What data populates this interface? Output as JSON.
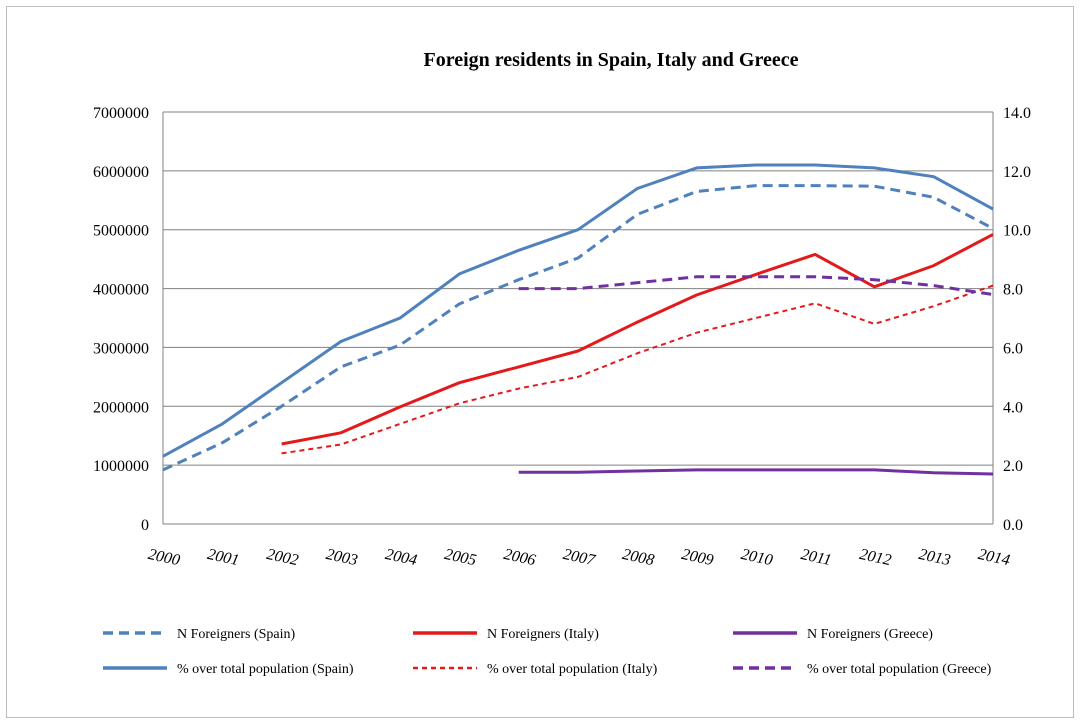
{
  "chart_data": {
    "type": "line",
    "title": "Foreign residents in Spain, Italy and Greece",
    "x": [
      "2000",
      "2001",
      "2002",
      "2003",
      "2004",
      "2005",
      "2006",
      "2007",
      "2008",
      "2009",
      "2010",
      "2011",
      "2012",
      "2013",
      "2014"
    ],
    "y_left": {
      "ylim": [
        0,
        7000000
      ],
      "ticks": [
        "0",
        "1000000",
        "2000000",
        "3000000",
        "4000000",
        "5000000",
        "6000000",
        "7000000"
      ]
    },
    "y_right": {
      "ylim": [
        0,
        14
      ],
      "ticks": [
        "0.0",
        "2.0",
        "4.0",
        "6.0",
        "8.0",
        "10.0",
        "12.0",
        "14.0"
      ]
    },
    "grid": true,
    "legend_position": "bottom",
    "series": [
      {
        "name": "N Foreigners (Spain)",
        "axis": "left",
        "color": "#4f81bd",
        "style": "dashed",
        "values": [
          920000,
          1380000,
          2000000,
          2670000,
          3040000,
          3740000,
          4150000,
          4520000,
          5260000,
          5650000,
          5750000,
          5750000,
          5740000,
          5550000,
          5020000
        ]
      },
      {
        "name": "N Foreigners (Italy)",
        "axis": "left",
        "color": "#e31a1c",
        "style": "solid",
        "values": [
          null,
          null,
          1360000,
          1550000,
          1990000,
          2400000,
          2670000,
          2940000,
          3430000,
          3890000,
          4240000,
          4580000,
          4030000,
          4390000,
          4920000
        ]
      },
      {
        "name": "N Foreigners (Greece)",
        "axis": "left",
        "color": "#7030a0",
        "style": "solid",
        "values": [
          null,
          null,
          null,
          null,
          null,
          null,
          880000,
          880000,
          900000,
          920000,
          920000,
          920000,
          920000,
          870000,
          850000
        ]
      },
      {
        "name": "% over total population (Spain)",
        "axis": "right",
        "color": "#4f81bd",
        "style": "solid",
        "values": [
          2.3,
          3.4,
          4.8,
          6.2,
          7.0,
          8.5,
          9.3,
          10.0,
          11.4,
          12.1,
          12.2,
          12.2,
          12.1,
          11.8,
          10.7
        ]
      },
      {
        "name": "% over total population (Italy)",
        "axis": "right",
        "color": "#e31a1c",
        "style": "dotted",
        "values": [
          null,
          null,
          2.4,
          2.7,
          3.4,
          4.1,
          4.6,
          5.0,
          5.8,
          6.5,
          7.0,
          7.5,
          6.8,
          7.4,
          8.1
        ]
      },
      {
        "name": "% over total population (Greece)",
        "axis": "right",
        "color": "#7030a0",
        "style": "dashed",
        "values": [
          null,
          null,
          null,
          null,
          null,
          null,
          8.0,
          8.0,
          8.2,
          8.4,
          8.4,
          8.4,
          8.3,
          8.1,
          7.8
        ]
      }
    ]
  }
}
